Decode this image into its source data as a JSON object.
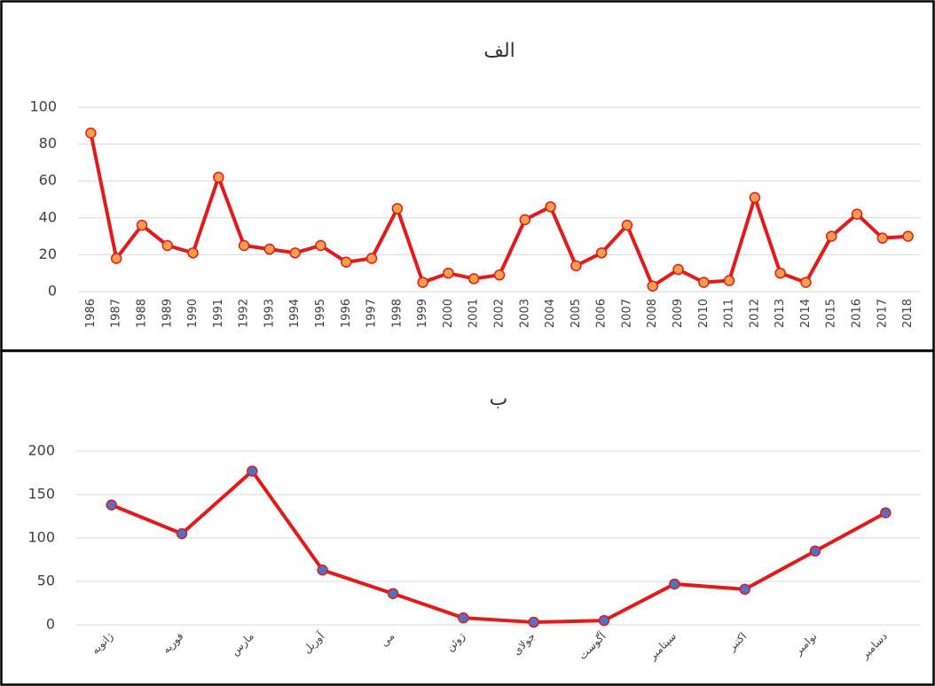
{
  "chart_data": [
    {
      "type": "line",
      "title": "الف",
      "categories": [
        "1986",
        "1987",
        "1988",
        "1989",
        "1990",
        "1991",
        "1992",
        "1993",
        "1994",
        "1995",
        "1996",
        "1997",
        "1998",
        "1999",
        "2000",
        "2001",
        "2002",
        "2003",
        "2004",
        "2005",
        "2006",
        "2007",
        "2008",
        "2009",
        "2010",
        "2011",
        "2012",
        "2013",
        "2014",
        "2015",
        "2016",
        "2017",
        "2018"
      ],
      "series": [
        {
          "color": "#e41a1a",
          "marker_color": "#f5a04a",
          "values": [
            86,
            18,
            36,
            25,
            21,
            62,
            25,
            23,
            21,
            25,
            16,
            18,
            45,
            5,
            10,
            7,
            9,
            39,
            46,
            14,
            21,
            36,
            3,
            12,
            5,
            6,
            51,
            10,
            5,
            30,
            42,
            29,
            30
          ]
        }
      ],
      "ylim": [
        0,
        100
      ],
      "yticks": [
        0,
        20,
        40,
        60,
        80,
        100
      ],
      "grid": true,
      "x_label_rotation": -90
    },
    {
      "type": "line",
      "title": "ب",
      "categories": [
        "ژانویه",
        "فوریه",
        "مارس",
        "آوریل",
        "می",
        "ژوئن",
        "جولای",
        "آگوست",
        "سپتامبر",
        "اکتبر",
        "نوامبر",
        "دسامبر"
      ],
      "series": [
        {
          "color": "#e41a1a",
          "marker_color": "#4f72c4",
          "values": [
            138,
            105,
            177,
            63,
            36,
            8,
            3,
            5,
            47,
            41,
            85,
            129
          ]
        }
      ],
      "ylim": [
        0,
        200
      ],
      "yticks": [
        0,
        50,
        100,
        150,
        200
      ],
      "grid": true,
      "x_label_rotation": -45
    }
  ]
}
